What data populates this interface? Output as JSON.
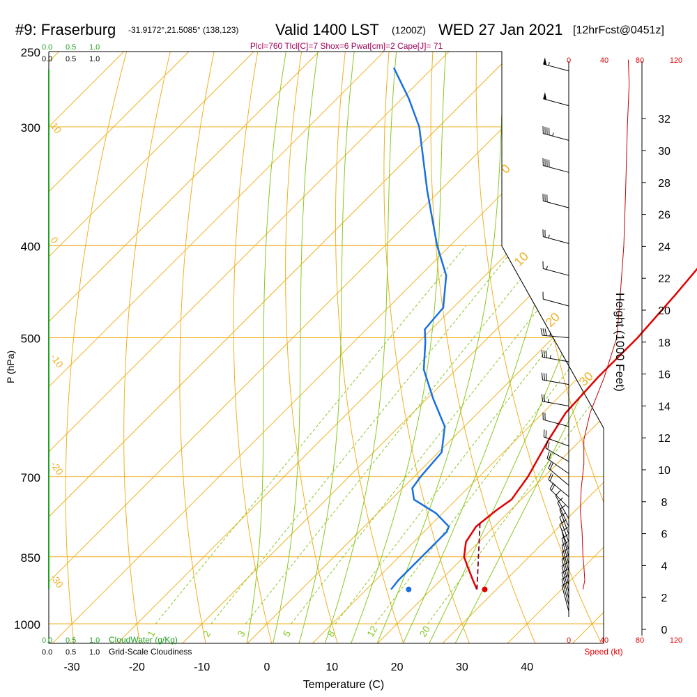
{
  "header": {
    "station": "#9: Fraserburg",
    "coords": "-31.9172°,21.5085° (138,123)",
    "valid": "Valid 1400 LST",
    "utc": "(1200Z)",
    "date": "WED 27 Jan 2021",
    "forecast": "[12hrFcst@0451z]",
    "params": "Plcl=760 Tlcl[C]=7 Shox=6 Pwat[cm]=2 Cape[J]= 71"
  },
  "colors": {
    "temperature": "#e00000",
    "dewpoint": "#1a6fe0",
    "parcel": "#800020",
    "isobar_isotherm": "#f0b020",
    "dry_adiabat": "#f0b020",
    "moist_adiabat": "#88c820",
    "mixing_ratio": "#88c820",
    "cloud": "#20a020",
    "wind_speed": "#c00000",
    "params_text": "#a0005a"
  },
  "chart_data": {
    "type": "line",
    "title": "#9: Fraserburg",
    "xlabel": "Temperature (C)",
    "ylabel": "P (hPa)",
    "y2label": "Height (1000 Feet)",
    "x_ticks": [
      "-30",
      "-20",
      "-10",
      "0",
      "10",
      "20",
      "30",
      "40"
    ],
    "y_ticks": [
      "250",
      "300",
      "400",
      "500",
      "700",
      "850",
      "1000"
    ],
    "height_ticks": [
      "0",
      "2",
      "4",
      "6",
      "8",
      "10",
      "12",
      "14",
      "16",
      "18",
      "20",
      "22",
      "24",
      "26",
      "28",
      "30",
      "32"
    ],
    "cloud_ticks": [
      "0.0",
      "0.5",
      "1.0"
    ],
    "cloud_water_label": "CloudWater (g/Kg)",
    "cloudiness_label": "Grid-Scale Cloudiness",
    "speed_ticks": [
      "0",
      "40",
      "80",
      "120"
    ],
    "speed_label": "Speed (kt)",
    "mixing_ratio_labels": [
      "1",
      "2",
      "3",
      "5",
      "8",
      "12",
      "20"
    ],
    "adiabat_labels": [
      "10",
      "0",
      "-10",
      "-20",
      "-30",
      "0",
      "10",
      "20",
      "30"
    ],
    "series": [
      {
        "name": "Temperature",
        "points": [
          [
            27.0,
            920
          ],
          [
            25,
            900
          ],
          [
            22,
            870
          ],
          [
            20,
            850
          ],
          [
            18,
            820
          ],
          [
            17.2,
            790
          ],
          [
            17.8,
            760
          ],
          [
            18.5,
            740
          ],
          [
            17.5,
            700
          ],
          [
            15.0,
            640
          ],
          [
            13.5,
            600
          ],
          [
            13.0,
            550
          ],
          [
            13.0,
            500
          ],
          [
            12.2,
            450
          ],
          [
            11.0,
            400
          ],
          [
            7.0,
            350
          ],
          [
            3.0,
            300
          ],
          [
            -5.0,
            270
          ],
          [
            -14.0,
            260
          ]
        ]
      },
      {
        "name": "Dewpoint",
        "points": [
          [
            13.8,
            920
          ],
          [
            13.5,
            900
          ],
          [
            13.5,
            850
          ],
          [
            13.5,
            800
          ],
          [
            13.0,
            790
          ],
          [
            9.0,
            765
          ],
          [
            3.5,
            740
          ],
          [
            1.5,
            720
          ],
          [
            1.0,
            700
          ],
          [
            0.5,
            660
          ],
          [
            -3.0,
            620
          ],
          [
            -9.0,
            580
          ],
          [
            -15.0,
            540
          ],
          [
            -19.0,
            505
          ],
          [
            -21.0,
            490
          ],
          [
            -21.5,
            465
          ],
          [
            -26.0,
            430
          ],
          [
            -32.0,
            400
          ],
          [
            -42.0,
            350
          ],
          [
            -53.0,
            300
          ],
          [
            -59.0,
            280
          ],
          [
            -66.0,
            260
          ]
        ]
      },
      {
        "name": "Parcel",
        "points": [
          [
            27.0,
            920
          ],
          [
            17.0,
            780
          ]
        ]
      }
    ],
    "surface_points": [
      {
        "name": "surface temperature",
        "t": 28.2,
        "p": 920
      },
      {
        "name": "surface dewpoint",
        "t": 16.5,
        "p": 920
      }
    ],
    "winds": [
      {
        "p": 262,
        "dir": 285,
        "spd": 55
      },
      {
        "p": 285,
        "dir": 285,
        "spd": 50
      },
      {
        "p": 310,
        "dir": 285,
        "spd": 45
      },
      {
        "p": 335,
        "dir": 285,
        "spd": 40
      },
      {
        "p": 365,
        "dir": 285,
        "spd": 30
      },
      {
        "p": 398,
        "dir": 285,
        "spd": 25
      },
      {
        "p": 430,
        "dir": 285,
        "spd": 15
      },
      {
        "p": 463,
        "dir": 285,
        "spd": 10
      },
      {
        "p": 500,
        "dir": 275,
        "spd": 35
      },
      {
        "p": 530,
        "dir": 280,
        "spd": 35
      },
      {
        "p": 560,
        "dir": 280,
        "spd": 30
      },
      {
        "p": 590,
        "dir": 280,
        "spd": 25
      },
      {
        "p": 620,
        "dir": 285,
        "spd": 20
      },
      {
        "p": 650,
        "dir": 290,
        "spd": 20
      },
      {
        "p": 675,
        "dir": 300,
        "spd": 20
      },
      {
        "p": 695,
        "dir": 305,
        "spd": 20
      },
      {
        "p": 715,
        "dir": 310,
        "spd": 20
      },
      {
        "p": 735,
        "dir": 310,
        "spd": 20
      },
      {
        "p": 755,
        "dir": 315,
        "spd": 20
      },
      {
        "p": 775,
        "dir": 330,
        "spd": 10
      },
      {
        "p": 790,
        "dir": 335,
        "spd": 10
      },
      {
        "p": 805,
        "dir": 340,
        "spd": 10
      },
      {
        "p": 820,
        "dir": 340,
        "spd": 10
      },
      {
        "p": 835,
        "dir": 340,
        "spd": 10
      },
      {
        "p": 850,
        "dir": 345,
        "spd": 10
      },
      {
        "p": 865,
        "dir": 345,
        "spd": 10
      },
      {
        "p": 880,
        "dir": 345,
        "spd": 10
      },
      {
        "p": 895,
        "dir": 345,
        "spd": 10
      },
      {
        "p": 910,
        "dir": 345,
        "spd": 10
      },
      {
        "p": 925,
        "dir": 345,
        "spd": 10
      },
      {
        "p": 940,
        "dir": 345,
        "spd": 10
      },
      {
        "p": 955,
        "dir": 345,
        "spd": 10
      },
      {
        "p": 970,
        "dir": 345,
        "spd": 10
      }
    ],
    "wind_speed_profile": [
      [
        16,
        920
      ],
      [
        18,
        900
      ],
      [
        17,
        870
      ],
      [
        16,
        850
      ],
      [
        15,
        800
      ],
      [
        13,
        760
      ],
      [
        14,
        720
      ],
      [
        17,
        680
      ],
      [
        17,
        640
      ],
      [
        24,
        600
      ],
      [
        40,
        550
      ],
      [
        54,
        500
      ],
      [
        58,
        450
      ],
      [
        62,
        400
      ],
      [
        64,
        350
      ],
      [
        66,
        300
      ],
      [
        68,
        270
      ],
      [
        67,
        255
      ]
    ]
  }
}
